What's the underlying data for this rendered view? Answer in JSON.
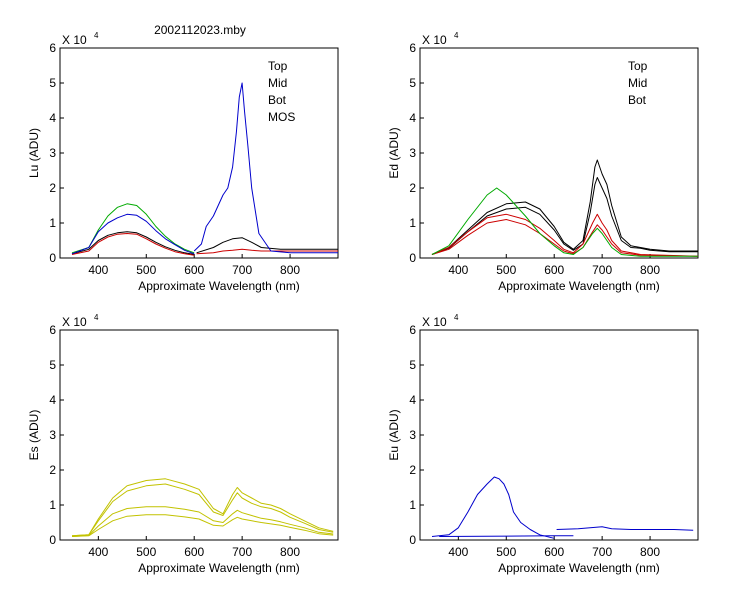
{
  "title": "2002112023.mby",
  "colors": {
    "Top": "#000000",
    "Mid": "#cc0000",
    "Bot": "#00aa00",
    "MOS": "#0000cc",
    "Es": "#c2c200",
    "Eu": "#0000cc"
  },
  "chart_data": [
    {
      "type": "line",
      "id": "lu",
      "ylabel": "Lu (ADU)",
      "xlabel": "Approximate Wavelength (nm)",
      "multiplier": "X 10",
      "exponent": "4",
      "xlim": [
        320,
        900
      ],
      "ylim": [
        0,
        6
      ],
      "xticks": [
        400,
        500,
        600,
        700,
        800
      ],
      "yticks": [
        0,
        1,
        2,
        3,
        4,
        5,
        6
      ],
      "legend": [
        "Top",
        "Mid",
        "Bot",
        "MOS"
      ],
      "series": [
        {
          "name": "Top",
          "x": [
            345,
            380,
            400,
            420,
            440,
            460,
            480,
            500,
            520,
            540,
            560,
            580,
            600
          ],
          "y": [
            0.12,
            0.25,
            0.5,
            0.65,
            0.72,
            0.75,
            0.72,
            0.6,
            0.45,
            0.32,
            0.22,
            0.15,
            0.1
          ]
        },
        {
          "name": "Top",
          "x": [
            605,
            640,
            660,
            680,
            700,
            720,
            740,
            780,
            840,
            900
          ],
          "y": [
            0.15,
            0.3,
            0.45,
            0.55,
            0.58,
            0.45,
            0.3,
            0.25,
            0.25,
            0.25
          ]
        },
        {
          "name": "Mid",
          "x": [
            345,
            380,
            400,
            420,
            440,
            460,
            480,
            500,
            520,
            540,
            560,
            580,
            600
          ],
          "y": [
            0.1,
            0.2,
            0.45,
            0.6,
            0.68,
            0.7,
            0.68,
            0.55,
            0.4,
            0.28,
            0.18,
            0.12,
            0.08
          ]
        },
        {
          "name": "Mid",
          "x": [
            605,
            640,
            660,
            680,
            700,
            720,
            740,
            780,
            840,
            900
          ],
          "y": [
            0.12,
            0.15,
            0.2,
            0.22,
            0.25,
            0.22,
            0.2,
            0.2,
            0.2,
            0.2
          ]
        },
        {
          "name": "Bot",
          "x": [
            345,
            380,
            400,
            420,
            440,
            460,
            480,
            500,
            520,
            540,
            560,
            580,
            600
          ],
          "y": [
            0.15,
            0.3,
            0.8,
            1.2,
            1.45,
            1.55,
            1.5,
            1.25,
            0.9,
            0.62,
            0.4,
            0.25,
            0.15
          ]
        },
        {
          "name": "MOS",
          "x": [
            345,
            380,
            400,
            420,
            440,
            460,
            480,
            500,
            520,
            540,
            560,
            580,
            600
          ],
          "y": [
            0.12,
            0.3,
            0.75,
            1.0,
            1.15,
            1.25,
            1.22,
            1.05,
            0.78,
            0.55,
            0.38,
            0.22,
            0.12
          ]
        },
        {
          "name": "MOS",
          "x": [
            600,
            615,
            625,
            640,
            650,
            660,
            670,
            680,
            688,
            694,
            700,
            705,
            712,
            720,
            735,
            760,
            800,
            900
          ],
          "y": [
            0.2,
            0.4,
            0.9,
            1.2,
            1.5,
            1.8,
            2.0,
            2.6,
            3.6,
            4.6,
            5.0,
            4.2,
            3.2,
            2.0,
            0.7,
            0.2,
            0.15,
            0.15
          ]
        }
      ]
    },
    {
      "type": "line",
      "id": "ed",
      "ylabel": "Ed  (ADU)",
      "xlabel": "Approximate Wavelength (nm)",
      "multiplier": "X 10",
      "exponent": "4",
      "xlim": [
        320,
        900
      ],
      "ylim": [
        0,
        6
      ],
      "xticks": [
        400,
        500,
        600,
        700,
        800
      ],
      "yticks": [
        0,
        1,
        2,
        3,
        4,
        5,
        6
      ],
      "legend": [
        "Top",
        "Mid",
        "Bot"
      ],
      "series": [
        {
          "name": "Top",
          "x": [
            345,
            380,
            420,
            460,
            500,
            540,
            570,
            600,
            620,
            640,
            660,
            675,
            685,
            690,
            700,
            710,
            720,
            740,
            760,
            780,
            800,
            840,
            900
          ],
          "y": [
            0.1,
            0.3,
            0.8,
            1.3,
            1.55,
            1.6,
            1.4,
            0.9,
            0.45,
            0.25,
            0.5,
            1.6,
            2.6,
            2.8,
            2.4,
            2.1,
            1.5,
            0.6,
            0.35,
            0.3,
            0.25,
            0.2,
            0.2
          ]
        },
        {
          "name": "Top",
          "x": [
            345,
            380,
            420,
            460,
            500,
            540,
            570,
            600,
            620,
            640,
            660,
            675,
            685,
            690,
            700,
            710,
            720,
            740,
            760,
            780,
            800,
            840,
            900
          ],
          "y": [
            0.1,
            0.28,
            0.75,
            1.2,
            1.4,
            1.45,
            1.25,
            0.8,
            0.4,
            0.22,
            0.4,
            1.3,
            2.1,
            2.3,
            2.0,
            1.7,
            1.2,
            0.5,
            0.3,
            0.28,
            0.22,
            0.18,
            0.18
          ]
        },
        {
          "name": "Mid",
          "x": [
            345,
            380,
            420,
            460,
            500,
            540,
            570,
            600,
            620,
            640,
            660,
            680,
            690,
            700,
            710,
            720,
            740,
            780,
            900
          ],
          "y": [
            0.1,
            0.3,
            0.75,
            1.15,
            1.25,
            1.1,
            0.85,
            0.5,
            0.25,
            0.15,
            0.4,
            1.0,
            1.25,
            1.0,
            0.8,
            0.5,
            0.2,
            0.1,
            0.05
          ]
        },
        {
          "name": "Mid",
          "x": [
            345,
            380,
            420,
            460,
            500,
            540,
            570,
            600,
            620,
            640,
            660,
            680,
            690,
            700,
            710,
            720,
            740,
            780,
            900
          ],
          "y": [
            0.1,
            0.25,
            0.65,
            1.0,
            1.1,
            0.95,
            0.7,
            0.4,
            0.2,
            0.12,
            0.3,
            0.75,
            0.95,
            0.8,
            0.6,
            0.4,
            0.15,
            0.08,
            0.05
          ]
        },
        {
          "name": "Bot",
          "x": [
            345,
            380,
            420,
            460,
            480,
            500,
            540,
            570,
            600,
            620,
            640,
            660,
            680,
            690,
            700,
            720,
            740,
            780,
            900
          ],
          "y": [
            0.1,
            0.35,
            1.1,
            1.8,
            2.0,
            1.8,
            1.2,
            0.7,
            0.35,
            0.15,
            0.1,
            0.3,
            0.7,
            0.85,
            0.7,
            0.3,
            0.1,
            0.05,
            0.05
          ]
        }
      ]
    },
    {
      "type": "line",
      "id": "es",
      "ylabel": "Es  (ADU)",
      "xlabel": "Approximate Wavelength (nm)",
      "multiplier": "X 10",
      "exponent": "4",
      "xlim": [
        320,
        900
      ],
      "ylim": [
        0,
        6
      ],
      "xticks": [
        400,
        500,
        600,
        700,
        800
      ],
      "yticks": [
        0,
        1,
        2,
        3,
        4,
        5,
        6
      ],
      "legend": [],
      "series": [
        {
          "name": "Es",
          "x": [
            345,
            380,
            400,
            430,
            460,
            500,
            540,
            580,
            610,
            640,
            660,
            680,
            690,
            700,
            720,
            740,
            760,
            780,
            800,
            830,
            860,
            890
          ],
          "y": [
            0.12,
            0.15,
            0.6,
            1.2,
            1.55,
            1.7,
            1.75,
            1.6,
            1.45,
            0.9,
            0.75,
            1.3,
            1.5,
            1.35,
            1.2,
            1.05,
            1.0,
            0.9,
            0.75,
            0.55,
            0.35,
            0.25
          ]
        },
        {
          "name": "Es",
          "x": [
            345,
            380,
            400,
            430,
            460,
            500,
            540,
            580,
            610,
            640,
            660,
            680,
            690,
            700,
            720,
            740,
            760,
            780,
            800,
            830,
            860,
            890
          ],
          "y": [
            0.12,
            0.15,
            0.55,
            1.1,
            1.4,
            1.55,
            1.6,
            1.45,
            1.3,
            0.8,
            0.7,
            1.15,
            1.35,
            1.2,
            1.05,
            0.95,
            0.9,
            0.8,
            0.65,
            0.48,
            0.3,
            0.22
          ]
        },
        {
          "name": "Es",
          "x": [
            345,
            380,
            400,
            430,
            460,
            500,
            540,
            580,
            610,
            640,
            660,
            680,
            690,
            700,
            720,
            740,
            760,
            780,
            800,
            830,
            860,
            890
          ],
          "y": [
            0.1,
            0.13,
            0.4,
            0.75,
            0.9,
            0.95,
            0.95,
            0.88,
            0.8,
            0.55,
            0.5,
            0.75,
            0.85,
            0.78,
            0.7,
            0.62,
            0.58,
            0.52,
            0.45,
            0.35,
            0.22,
            0.17
          ]
        },
        {
          "name": "Es",
          "x": [
            345,
            380,
            400,
            430,
            460,
            500,
            540,
            580,
            610,
            640,
            660,
            680,
            690,
            700,
            720,
            740,
            760,
            780,
            800,
            830,
            860,
            890
          ],
          "y": [
            0.1,
            0.12,
            0.3,
            0.55,
            0.68,
            0.72,
            0.72,
            0.66,
            0.6,
            0.42,
            0.4,
            0.58,
            0.65,
            0.6,
            0.55,
            0.5,
            0.46,
            0.42,
            0.36,
            0.28,
            0.18,
            0.14
          ]
        }
      ]
    },
    {
      "type": "line",
      "id": "eu",
      "ylabel": "Eu  (ADU)",
      "xlabel": "Approximate Wavelength (nm)",
      "multiplier": "X 10",
      "exponent": "4",
      "xlim": [
        320,
        900
      ],
      "ylim": [
        0,
        6
      ],
      "xticks": [
        400,
        500,
        600,
        700,
        800
      ],
      "yticks": [
        0,
        1,
        2,
        3,
        4,
        5,
        6
      ],
      "legend": [],
      "series": [
        {
          "name": "Eu",
          "x": [
            345,
            380,
            400,
            420,
            440,
            460,
            475,
            485,
            495,
            505,
            515,
            530,
            550,
            570,
            590,
            600
          ],
          "y": [
            0.1,
            0.15,
            0.35,
            0.8,
            1.3,
            1.6,
            1.8,
            1.75,
            1.6,
            1.3,
            0.8,
            0.5,
            0.3,
            0.15,
            0.08,
            0.05
          ]
        },
        {
          "name": "Eu",
          "x": [
            360,
            600,
            640
          ],
          "y": [
            0.1,
            0.12,
            0.12
          ]
        },
        {
          "name": "Eu",
          "x": [
            605,
            650,
            700,
            720,
            760,
            800,
            850,
            890
          ],
          "y": [
            0.3,
            0.32,
            0.38,
            0.32,
            0.3,
            0.3,
            0.3,
            0.28
          ]
        }
      ]
    }
  ]
}
